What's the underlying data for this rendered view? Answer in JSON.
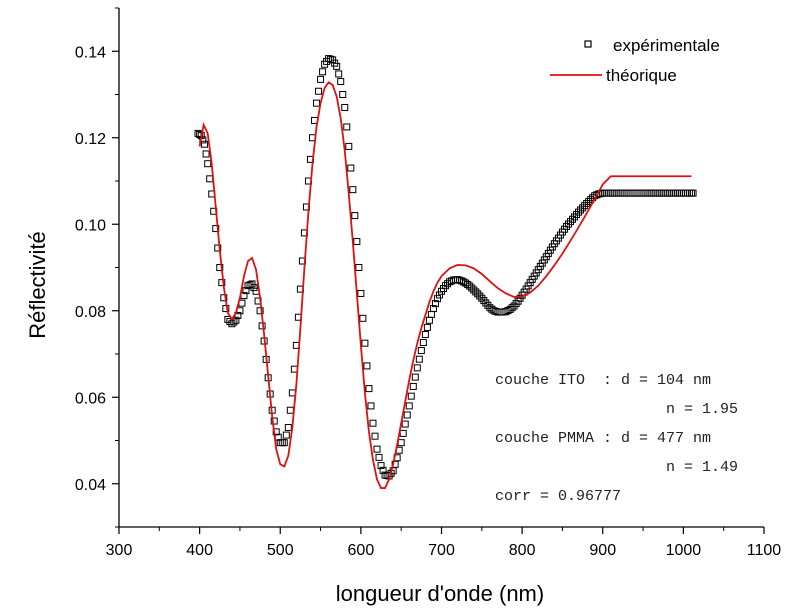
{
  "chart_data": {
    "type": "scatter",
    "xlabel": "longueur d'onde (nm)",
    "ylabel": "Réflectivité",
    "xlim": [
      300,
      1100
    ],
    "ylim": [
      0.03,
      0.15
    ],
    "xticks": [
      300,
      400,
      500,
      600,
      700,
      800,
      900,
      1000,
      1100
    ],
    "yticks": [
      0.04,
      0.06,
      0.08,
      0.1,
      0.12,
      0.14
    ],
    "xtick_labels": [
      "300",
      "400",
      "500",
      "600",
      "700",
      "800",
      "900",
      "1000",
      "1100"
    ],
    "ytick_labels": [
      "0.04",
      "0.06",
      "0.08",
      "0.10",
      "0.12",
      "0.14"
    ],
    "grid": false,
    "legend_position": "top-right",
    "series": [
      {
        "name": "expérimentale",
        "marker": "open-square",
        "color": "#000000",
        "x": [
          398,
          402,
          406,
          410,
          415,
          420,
          425,
          430,
          435,
          440,
          445,
          450,
          455,
          460,
          465,
          470,
          475,
          480,
          485,
          490,
          495,
          500,
          505,
          510,
          515,
          520,
          525,
          530,
          535,
          540,
          545,
          550,
          555,
          560,
          565,
          570,
          575,
          580,
          585,
          590,
          595,
          600,
          605,
          610,
          615,
          620,
          625,
          630,
          635,
          640,
          645,
          650,
          655,
          660,
          665,
          670,
          675,
          680,
          685,
          690,
          695,
          700,
          705,
          710,
          715,
          720,
          725,
          730,
          735,
          740,
          745,
          750,
          755,
          760,
          765,
          770,
          775,
          780,
          785,
          790,
          795,
          800,
          805,
          810,
          815,
          820,
          825,
          830,
          835,
          840,
          845,
          850,
          855,
          860,
          865,
          870,
          875,
          880,
          885,
          890,
          895,
          900,
          905,
          910,
          915,
          920,
          925,
          930,
          935,
          940,
          945,
          950,
          955,
          960,
          965,
          970,
          975,
          980,
          985,
          990,
          995,
          1000,
          1005,
          1010,
          1012
        ],
        "y": [
          0.121,
          0.1205,
          0.1185,
          0.114,
          0.107,
          0.099,
          0.09,
          0.083,
          0.078,
          0.077,
          0.0778,
          0.08,
          0.0835,
          0.0858,
          0.0862,
          0.0845,
          0.08,
          0.073,
          0.0645,
          0.057,
          0.052,
          0.0495,
          0.0495,
          0.053,
          0.061,
          0.072,
          0.085,
          0.098,
          0.11,
          0.12,
          0.128,
          0.1335,
          0.137,
          0.1383,
          0.138,
          0.1365,
          0.133,
          0.127,
          0.118,
          0.108,
          0.096,
          0.084,
          0.0725,
          0.062,
          0.054,
          0.048,
          0.0442,
          0.042,
          0.0418,
          0.043,
          0.046,
          0.0495,
          0.0538,
          0.058,
          0.0625,
          0.0668,
          0.0708,
          0.0745,
          0.0778,
          0.0805,
          0.0828,
          0.0845,
          0.0858,
          0.0867,
          0.0871,
          0.0872,
          0.0869,
          0.0864,
          0.0857,
          0.0848,
          0.0839,
          0.0829,
          0.0818,
          0.0807,
          0.08,
          0.0797,
          0.0797,
          0.0798,
          0.0803,
          0.0811,
          0.0822,
          0.0836,
          0.085,
          0.0865,
          0.088,
          0.0895,
          0.091,
          0.0925,
          0.094,
          0.0955,
          0.0968,
          0.0982,
          0.0995,
          0.1006,
          0.1017,
          0.1028,
          0.1038,
          0.1048,
          0.1057,
          0.1066,
          0.107,
          0.1072,
          0.1072,
          0.1072,
          0.1072,
          0.1072,
          0.1072,
          0.1072,
          0.1072,
          0.1072,
          0.1072,
          0.1072,
          0.1072,
          0.1072,
          0.1072,
          0.1072,
          0.1072,
          0.1072,
          0.1072,
          0.1072,
          0.1072,
          0.1072,
          0.1072,
          0.1072,
          0.1072
        ]
      },
      {
        "name": "théorique",
        "marker": "line",
        "color": "#dd1111",
        "x": [
          400,
          405,
          410,
          415,
          420,
          425,
          430,
          435,
          440,
          445,
          450,
          455,
          460,
          465,
          470,
          475,
          480,
          485,
          490,
          495,
          500,
          505,
          510,
          515,
          520,
          525,
          530,
          535,
          540,
          545,
          550,
          555,
          560,
          565,
          570,
          575,
          580,
          585,
          590,
          595,
          600,
          605,
          610,
          615,
          620,
          625,
          630,
          635,
          640,
          645,
          650,
          655,
          660,
          665,
          670,
          675,
          680,
          685,
          690,
          695,
          700,
          710,
          720,
          730,
          740,
          750,
          760,
          770,
          780,
          790,
          800,
          810,
          820,
          830,
          840,
          850,
          860,
          870,
          880,
          890,
          900,
          910,
          920,
          930,
          940,
          950,
          960,
          970,
          980,
          990,
          1000,
          1010
        ],
        "y": [
          0.118,
          0.123,
          0.121,
          0.114,
          0.104,
          0.094,
          0.0855,
          0.0795,
          0.078,
          0.0795,
          0.083,
          0.088,
          0.0915,
          0.0922,
          0.0895,
          0.083,
          0.0745,
          0.065,
          0.0555,
          0.048,
          0.0445,
          0.044,
          0.0465,
          0.053,
          0.063,
          0.076,
          0.09,
          0.103,
          0.114,
          0.1225,
          0.128,
          0.1315,
          0.1328,
          0.1322,
          0.1295,
          0.1245,
          0.117,
          0.107,
          0.096,
          0.084,
          0.072,
          0.061,
          0.052,
          0.0455,
          0.041,
          0.039,
          0.039,
          0.041,
          0.0445,
          0.049,
          0.054,
          0.059,
          0.064,
          0.0685,
          0.0725,
          0.076,
          0.079,
          0.082,
          0.0845,
          0.0865,
          0.088,
          0.0898,
          0.0906,
          0.0905,
          0.0898,
          0.0885,
          0.0868,
          0.0852,
          0.084,
          0.0832,
          0.0833,
          0.0842,
          0.0858,
          0.088,
          0.0905,
          0.0932,
          0.0962,
          0.0993,
          0.1025,
          0.1058,
          0.1092,
          0.1111,
          0.1111,
          0.1111,
          0.1111,
          0.1111,
          0.1111,
          0.1111,
          0.1111,
          0.1111,
          0.1111,
          0.1111
        ]
      }
    ],
    "annotations": [
      "couche ITO  : d = 104 nm",
      "n = 1.95",
      "couche PMMA : d = 477 nm",
      "n = 1.49",
      "corr = 0.96777"
    ]
  }
}
